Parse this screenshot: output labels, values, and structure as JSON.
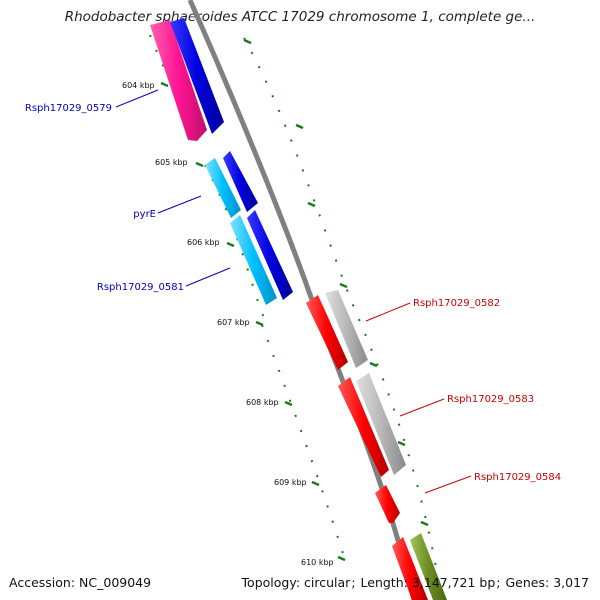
{
  "title": "Rhodobacter sphaeroides ATCC 17029 chromosome 1, complete ge...",
  "footer": {
    "accession_label": "Accession:",
    "accession": "NC_009049",
    "topology_label": "Topology:",
    "topology": "circular",
    "length_label": "Length:",
    "length": "3,147,721 bp",
    "genes_label": "Genes:",
    "genes": "3,017"
  },
  "ruler_labels": [
    "604 kbp",
    "605 kbp",
    "606 kbp",
    "607 kbp",
    "608 kbp",
    "609 kbp",
    "610 kbp"
  ],
  "gene_labels": [
    {
      "name": "Rsph17029_0579",
      "color": "#0000c0"
    },
    {
      "name": "pyrE",
      "color": "#0000c0"
    },
    {
      "name": "Rsph17029_0581",
      "color": "#0000c0"
    },
    {
      "name": "Rsph17029_0582",
      "color": "#cc0000"
    },
    {
      "name": "Rsph17029_0583",
      "color": "#cc0000"
    },
    {
      "name": "Rsph17029_0584",
      "color": "#cc0000"
    }
  ],
  "colors": {
    "backbone": "#808080",
    "ruler": "#1a7a1a",
    "forward_cds": "#ff1493",
    "forward_cds_alt": "#00bfff",
    "forward_feature": "#0000e0",
    "reverse_cds": "#ff0000",
    "reverse_feature": "#b0b0b0",
    "other_feature": "#6b8e23"
  }
}
